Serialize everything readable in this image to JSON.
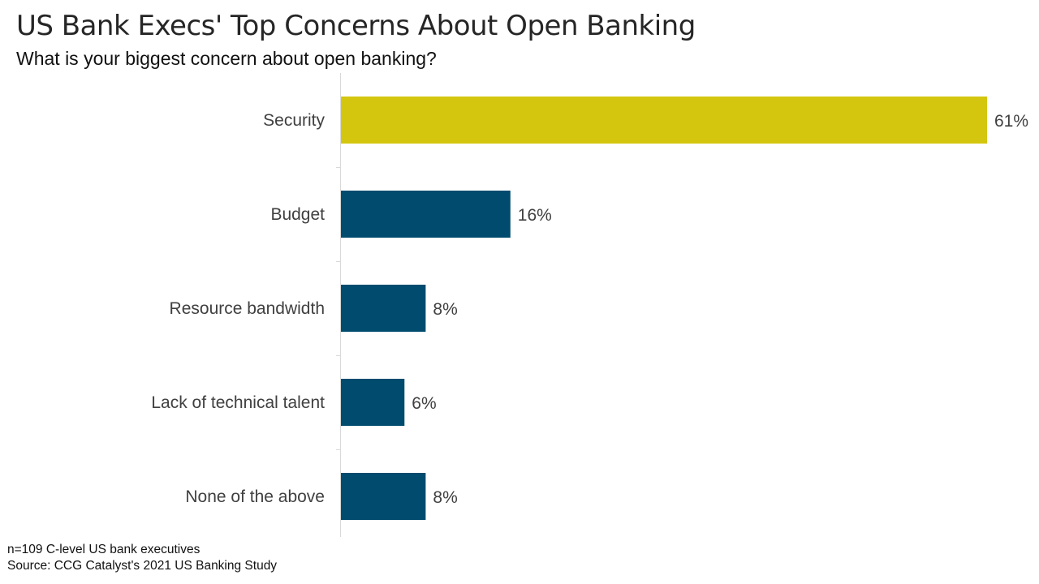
{
  "title": "US Bank Execs' Top Concerns About Open Banking",
  "subtitle": "What is your biggest concern about open banking?",
  "footnotes": {
    "sample": "n=109 C-level US bank executives",
    "source": "Source: CCG Catalyst's 2021 US Banking Study"
  },
  "colors": {
    "highlight": "#d4c60f",
    "default": "#004b6e",
    "axis": "#d9d9d9",
    "label_text": "#404040"
  },
  "chart_data": {
    "type": "bar",
    "orientation": "horizontal",
    "title": "US Bank Execs' Top Concerns About Open Banking",
    "subtitle": "What is your biggest concern about open banking?",
    "categories": [
      "Security",
      "Budget",
      "Resource bandwidth",
      "Lack of technical talent",
      "None of the above"
    ],
    "values": [
      61,
      16,
      8,
      6,
      8
    ],
    "value_labels": [
      "61%",
      "16%",
      "8%",
      "6%",
      "8%"
    ],
    "highlighted_category": "Security",
    "xlim": [
      0,
      61
    ],
    "grid": false,
    "legend": "none"
  }
}
